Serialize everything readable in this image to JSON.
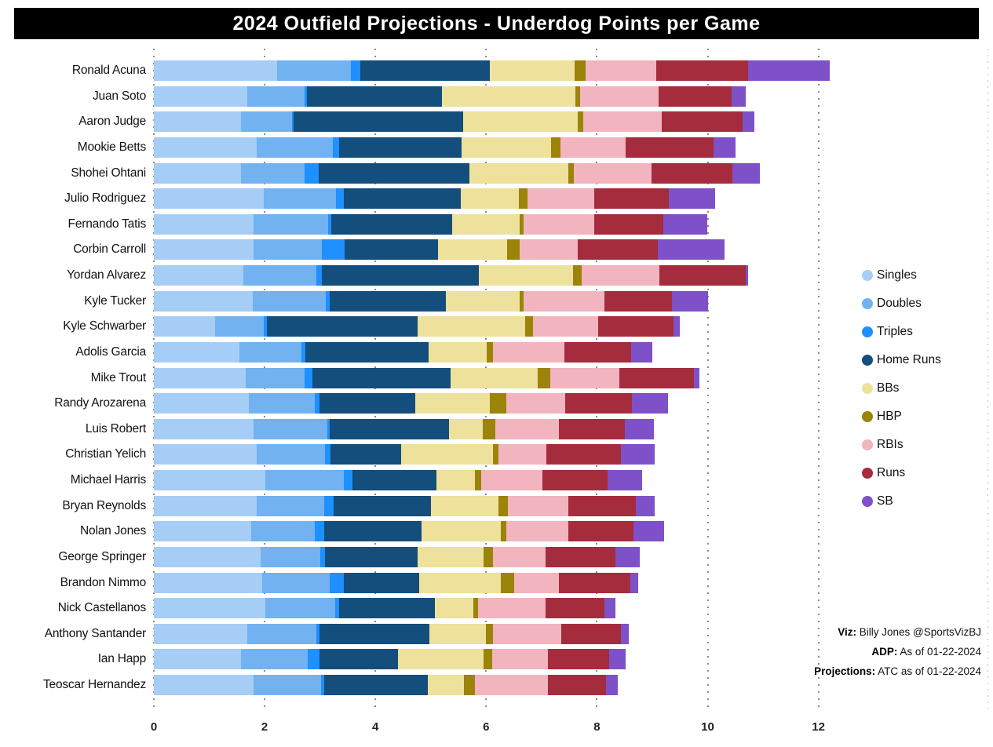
{
  "title": "2024 Outfield Projections - Underdog Points per Game",
  "colors": {
    "banner_bg": "#000000",
    "banner_text": "#ffffff",
    "gridline": "#8a8a8a",
    "plot_border": "#bbbbbb",
    "background": "#ffffff"
  },
  "chart_data": {
    "type": "bar",
    "orientation": "horizontal",
    "stacked": true,
    "title": "2024 Outfield Projections - Underdog Points per Game",
    "xlabel": "",
    "ylabel": "",
    "xlim": [
      0,
      15
    ],
    "x_ticks": [
      0,
      2,
      4,
      6,
      8,
      10,
      12
    ],
    "grid": "dotted-vertical",
    "legend_position": "right",
    "categories": [
      "Ronald Acuna",
      "Juan Soto",
      "Aaron Judge",
      "Mookie Betts",
      "Shohei Ohtani",
      "Julio Rodriguez",
      "Fernando Tatis",
      "Corbin Carroll",
      "Yordan Alvarez",
      "Kyle Tucker",
      "Kyle Schwarber",
      "Adolis Garcia",
      "Mike Trout",
      "Randy Arozarena",
      "Luis Robert",
      "Christian Yelich",
      "Michael Harris",
      "Bryan Reynolds",
      "Nolan Jones",
      "George Springer",
      "Brandon Nimmo",
      "Nick Castellanos",
      "Anthony Santander",
      "Ian Happ",
      "Teoscar Hernandez"
    ],
    "series": [
      {
        "name": "Singles",
        "color": "#A6CDF5",
        "values": [
          2.23,
          1.68,
          1.58,
          1.86,
          1.58,
          1.99,
          1.8,
          1.8,
          1.62,
          1.78,
          1.11,
          1.54,
          1.66,
          1.72,
          1.8,
          1.86,
          2.01,
          1.85,
          1.76,
          1.93,
          1.96,
          2.01,
          1.68,
          1.58,
          1.8
        ]
      },
      {
        "name": "Doubles",
        "color": "#72B2F0",
        "values": [
          1.33,
          1.04,
          0.92,
          1.37,
          1.14,
          1.3,
          1.35,
          1.23,
          1.31,
          1.32,
          0.87,
          1.12,
          1.06,
          1.19,
          1.33,
          1.23,
          1.42,
          1.22,
          1.15,
          1.08,
          1.21,
          1.26,
          1.26,
          1.2,
          1.22
        ]
      },
      {
        "name": "Triples",
        "color": "#1E90FF",
        "values": [
          0.17,
          0.04,
          0.03,
          0.11,
          0.25,
          0.14,
          0.06,
          0.41,
          0.1,
          0.08,
          0.06,
          0.08,
          0.14,
          0.08,
          0.04,
          0.1,
          0.16,
          0.17,
          0.16,
          0.08,
          0.26,
          0.08,
          0.05,
          0.21,
          0.05
        ]
      },
      {
        "name": "Home Runs",
        "color": "#134E7D",
        "values": [
          2.34,
          2.44,
          3.05,
          2.21,
          2.73,
          2.11,
          2.18,
          1.69,
          2.84,
          2.1,
          2.72,
          2.22,
          2.5,
          1.73,
          2.16,
          1.27,
          1.52,
          1.77,
          1.77,
          1.67,
          1.36,
          1.72,
          1.99,
          1.42,
          1.88
        ]
      },
      {
        "name": "BBs",
        "color": "#EDE19C",
        "values": [
          1.53,
          2.41,
          2.08,
          1.62,
          1.78,
          1.05,
          1.21,
          1.25,
          1.7,
          1.32,
          1.94,
          1.05,
          1.57,
          1.35,
          0.61,
          1.67,
          0.69,
          1.22,
          1.42,
          1.2,
          1.47,
          0.7,
          1.01,
          1.55,
          0.65
        ]
      },
      {
        "name": "HBP",
        "color": "#9C8309",
        "values": [
          0.19,
          0.09,
          0.1,
          0.18,
          0.1,
          0.16,
          0.08,
          0.23,
          0.16,
          0.08,
          0.15,
          0.11,
          0.23,
          0.29,
          0.23,
          0.1,
          0.11,
          0.17,
          0.1,
          0.17,
          0.24,
          0.08,
          0.14,
          0.15,
          0.2
        ]
      },
      {
        "name": "RBIs",
        "color": "#F2B4BE",
        "values": [
          1.28,
          1.42,
          1.41,
          1.17,
          1.41,
          1.2,
          1.27,
          1.04,
          1.4,
          1.45,
          1.18,
          1.29,
          1.24,
          1.07,
          1.14,
          0.86,
          1.1,
          1.08,
          1.12,
          0.95,
          0.82,
          1.23,
          1.22,
          1.0,
          1.31
        ]
      },
      {
        "name": "Runs",
        "color": "#A52C3C",
        "values": [
          1.66,
          1.32,
          1.46,
          1.59,
          1.45,
          1.35,
          1.25,
          1.45,
          1.56,
          1.23,
          1.36,
          1.21,
          1.35,
          1.2,
          1.2,
          1.35,
          1.18,
          1.23,
          1.18,
          1.25,
          1.28,
          1.06,
          1.09,
          1.11,
          1.06
        ]
      },
      {
        "name": "SB",
        "color": "#7E51C8",
        "values": [
          1.47,
          0.25,
          0.22,
          0.39,
          0.51,
          0.83,
          0.8,
          1.2,
          0.04,
          0.65,
          0.11,
          0.38,
          0.1,
          0.65,
          0.52,
          0.6,
          0.63,
          0.34,
          0.56,
          0.44,
          0.14,
          0.19,
          0.14,
          0.3,
          0.21
        ]
      }
    ]
  },
  "footnote": {
    "lines": [
      {
        "label": "Viz:",
        "text": "Billy Jones @SportsVizBJ"
      },
      {
        "label": "ADP:",
        "text": "As of 01-22-2024"
      },
      {
        "label": "Projections:",
        "text": "ATC as of 01-22-2024"
      }
    ]
  }
}
